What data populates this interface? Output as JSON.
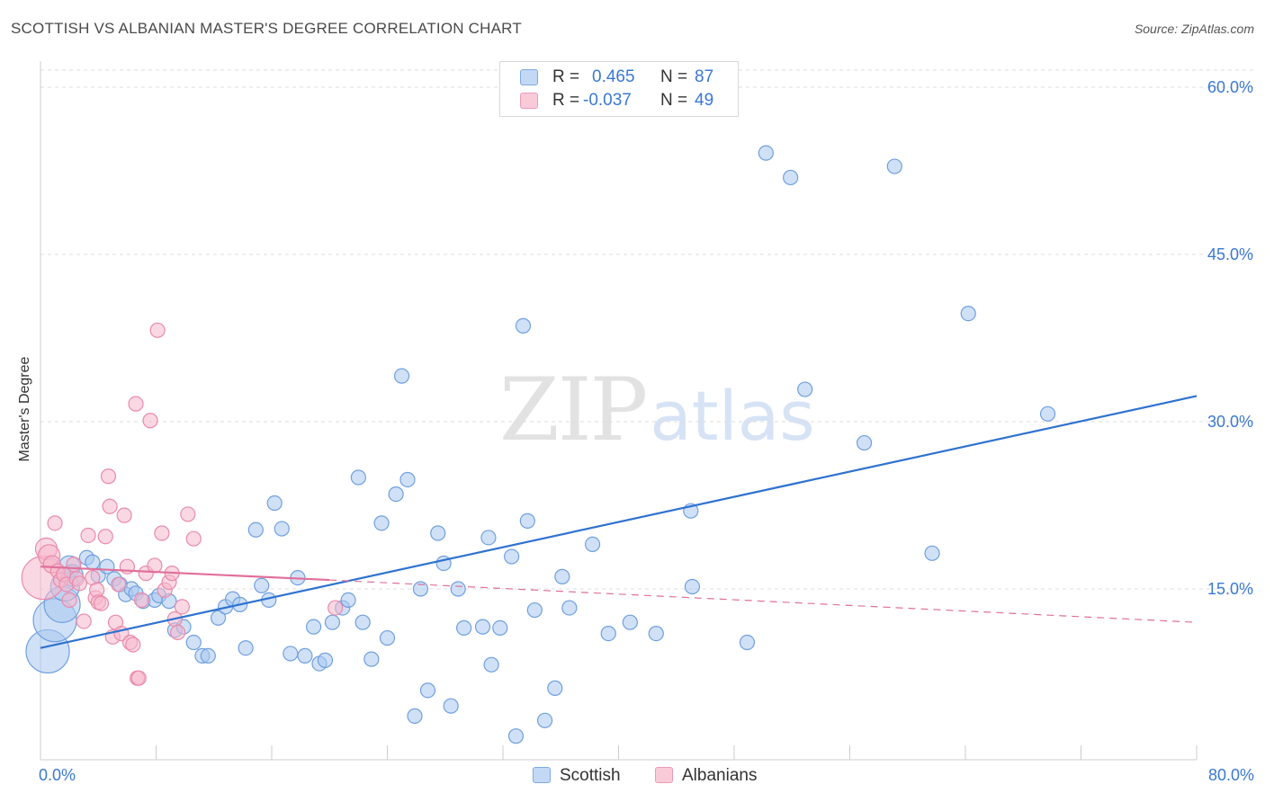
{
  "title": "SCOTTISH VS ALBANIAN MASTER'S DEGREE CORRELATION CHART",
  "source": "Source: ZipAtlas.com",
  "watermark": {
    "zip": "ZIP",
    "atlas": "atlas"
  },
  "colors": {
    "scottish_fill": "#aac8f0",
    "scottish_stroke": "#6f9fde",
    "scottish_line": "#2f72d0",
    "albanian_fill": "#f6b8cc",
    "albanian_stroke": "#e98aaa",
    "albanian_line": "#e0709a",
    "tick_text": "#3a78d2",
    "grid": "#dddddd"
  },
  "legend": {
    "rows": [
      {
        "r_label": "R =",
        "r_value": "0.465",
        "n_label": "N =",
        "n_value": "87"
      },
      {
        "r_label": "R =",
        "r_value": "-0.037",
        "n_label": "N =",
        "n_value": "49"
      }
    ],
    "series": [
      "Scottish",
      "Albanians"
    ]
  },
  "chart_data": {
    "type": "scatter",
    "title": "SCOTTISH VS ALBANIAN MASTER'S DEGREE CORRELATION CHART",
    "xlabel": "",
    "ylabel": "Master's Degree",
    "xlim": [
      0,
      80
    ],
    "ylim": [
      0,
      62
    ],
    "x_tick_labels": [
      "0.0%",
      "80.0%"
    ],
    "y_ticks": [
      15,
      30,
      45,
      60
    ],
    "y_tick_labels": [
      "15.0%",
      "30.0%",
      "45.0%",
      "60.0%"
    ],
    "grid": true,
    "series": [
      {
        "name": "Scottish",
        "R": 0.465,
        "N": 87,
        "trend": {
          "x": [
            0,
            80
          ],
          "y": [
            9.7,
            32.3
          ],
          "style": "solid"
        },
        "points": [
          [
            0.5,
            9.4,
            3
          ],
          [
            1.0,
            12.2,
            3
          ],
          [
            1.5,
            13.6,
            2.5
          ],
          [
            1.7,
            15.2,
            2
          ],
          [
            2.0,
            17.0,
            1.5
          ],
          [
            2.2,
            16.2,
            1.5
          ],
          [
            3.2,
            17.8,
            1
          ],
          [
            3.6,
            17.4,
            1
          ],
          [
            4.0,
            16.2,
            1
          ],
          [
            4.6,
            17.0,
            1
          ],
          [
            5.1,
            15.9,
            1
          ],
          [
            5.5,
            15.4,
            1
          ],
          [
            5.9,
            14.5,
            1
          ],
          [
            6.3,
            15.0,
            1
          ],
          [
            6.6,
            14.6,
            1
          ],
          [
            7.1,
            13.9,
            1
          ],
          [
            7.9,
            14.0,
            1
          ],
          [
            8.2,
            14.4,
            1
          ],
          [
            8.9,
            13.9,
            1
          ],
          [
            9.3,
            11.3,
            1
          ],
          [
            9.9,
            11.6,
            1
          ],
          [
            10.6,
            10.2,
            1
          ],
          [
            11.2,
            9.0,
            1
          ],
          [
            11.6,
            9.0,
            1
          ],
          [
            12.3,
            12.4,
            1
          ],
          [
            12.8,
            13.4,
            1
          ],
          [
            13.3,
            14.1,
            1
          ],
          [
            13.8,
            13.6,
            1
          ],
          [
            14.2,
            9.7,
            1
          ],
          [
            14.9,
            20.3,
            1
          ],
          [
            15.3,
            15.3,
            1
          ],
          [
            15.8,
            14.0,
            1
          ],
          [
            16.2,
            22.7,
            1
          ],
          [
            16.7,
            20.4,
            1
          ],
          [
            17.3,
            9.2,
            1
          ],
          [
            17.8,
            16.0,
            1
          ],
          [
            18.3,
            9.0,
            1
          ],
          [
            18.9,
            11.6,
            1
          ],
          [
            19.3,
            8.3,
            1
          ],
          [
            19.7,
            8.6,
            1
          ],
          [
            20.2,
            12.0,
            1
          ],
          [
            20.9,
            13.3,
            1
          ],
          [
            21.3,
            14.0,
            1
          ],
          [
            22.0,
            25.0,
            1
          ],
          [
            22.3,
            12.0,
            1
          ],
          [
            22.9,
            8.7,
            1
          ],
          [
            23.6,
            20.9,
            1
          ],
          [
            24.0,
            10.6,
            1
          ],
          [
            24.6,
            23.5,
            1
          ],
          [
            25.0,
            34.1,
            1
          ],
          [
            25.4,
            24.8,
            1
          ],
          [
            25.9,
            3.6,
            1
          ],
          [
            26.3,
            15.0,
            1
          ],
          [
            26.8,
            5.9,
            1
          ],
          [
            27.5,
            20.0,
            1
          ],
          [
            27.9,
            17.3,
            1
          ],
          [
            28.4,
            4.5,
            1
          ],
          [
            28.9,
            15.0,
            1
          ],
          [
            29.3,
            11.5,
            1
          ],
          [
            30.6,
            11.6,
            1
          ],
          [
            31.0,
            19.6,
            1
          ],
          [
            31.2,
            8.2,
            1
          ],
          [
            31.8,
            11.5,
            1
          ],
          [
            32.6,
            17.9,
            1
          ],
          [
            32.9,
            1.8,
            1
          ],
          [
            33.4,
            38.6,
            1
          ],
          [
            33.7,
            21.1,
            1
          ],
          [
            34.2,
            13.1,
            1
          ],
          [
            34.9,
            3.2,
            1
          ],
          [
            35.6,
            6.1,
            1
          ],
          [
            36.1,
            16.1,
            1
          ],
          [
            36.6,
            13.3,
            1
          ],
          [
            38.2,
            19.0,
            1
          ],
          [
            39.3,
            11.0,
            1
          ],
          [
            40.8,
            12.0,
            1
          ],
          [
            42.6,
            11.0,
            1
          ],
          [
            45.0,
            22.0,
            1
          ],
          [
            45.1,
            15.2,
            1
          ],
          [
            48.9,
            10.2,
            1
          ],
          [
            50.2,
            54.1,
            1
          ],
          [
            51.9,
            51.9,
            1
          ],
          [
            52.9,
            32.9,
            1
          ],
          [
            57.0,
            28.1,
            1
          ],
          [
            59.1,
            52.9,
            1
          ],
          [
            61.7,
            18.2,
            1
          ],
          [
            64.2,
            39.7,
            1
          ],
          [
            69.7,
            30.7,
            1
          ]
        ]
      },
      {
        "name": "Albanians",
        "R": -0.037,
        "N": 49,
        "trend": {
          "x": [
            0,
            20
          ],
          "y": [
            17.0,
            15.8
          ],
          "style": "solid",
          "extended": {
            "x": [
              20,
              80
            ],
            "y": [
              15.8,
              12.0
            ],
            "style": "dashed"
          }
        },
        "points": [
          [
            0.2,
            16.0,
            3
          ],
          [
            0.4,
            18.6,
            1.5
          ],
          [
            0.6,
            18.0,
            1.5
          ],
          [
            0.8,
            17.2,
            1.2
          ],
          [
            1.0,
            20.9,
            1
          ],
          [
            1.2,
            16.6,
            1
          ],
          [
            1.4,
            15.8,
            1
          ],
          [
            1.6,
            16.3,
            1
          ],
          [
            1.8,
            15.4,
            1
          ],
          [
            2.0,
            14.0,
            1
          ],
          [
            2.3,
            17.2,
            1
          ],
          [
            2.5,
            15.9,
            1
          ],
          [
            2.7,
            15.5,
            1
          ],
          [
            3.0,
            12.1,
            1
          ],
          [
            3.3,
            19.8,
            1
          ],
          [
            3.6,
            16.0,
            1
          ],
          [
            3.8,
            14.2,
            1
          ],
          [
            3.9,
            14.9,
            1
          ],
          [
            4.0,
            13.8,
            1
          ],
          [
            4.2,
            13.7,
            1
          ],
          [
            4.5,
            19.7,
            1
          ],
          [
            4.7,
            25.1,
            1
          ],
          [
            4.8,
            22.4,
            1
          ],
          [
            5.0,
            10.7,
            1
          ],
          [
            5.2,
            12.0,
            1
          ],
          [
            5.4,
            15.4,
            1
          ],
          [
            5.6,
            11.0,
            1
          ],
          [
            5.8,
            21.6,
            1
          ],
          [
            6.0,
            17.0,
            1
          ],
          [
            6.2,
            10.2,
            1
          ],
          [
            6.4,
            10.0,
            1
          ],
          [
            6.6,
            31.6,
            1
          ],
          [
            6.7,
            7.0,
            1
          ],
          [
            6.8,
            7.0,
            1
          ],
          [
            7.0,
            14.0,
            1
          ],
          [
            7.3,
            16.4,
            1
          ],
          [
            7.6,
            30.1,
            1
          ],
          [
            7.9,
            17.1,
            1
          ],
          [
            8.1,
            38.2,
            1
          ],
          [
            8.4,
            20.0,
            1
          ],
          [
            8.6,
            14.9,
            1
          ],
          [
            8.9,
            15.6,
            1
          ],
          [
            9.1,
            16.4,
            1
          ],
          [
            9.3,
            12.3,
            1
          ],
          [
            9.5,
            11.1,
            1
          ],
          [
            9.8,
            13.4,
            1
          ],
          [
            10.2,
            21.7,
            1
          ],
          [
            10.6,
            19.5,
            1
          ],
          [
            20.4,
            13.3,
            1
          ]
        ]
      }
    ]
  }
}
